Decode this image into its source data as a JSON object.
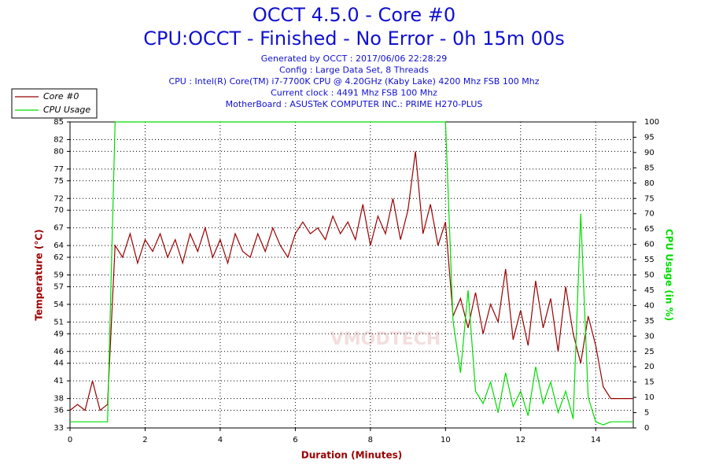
{
  "chart_data": {
    "type": "line",
    "title": "OCCT 4.5.0 - Core #0",
    "subtitle": "CPU:OCCT - Finished - No Error - 0h 15m 00s",
    "info": [
      "Generated by OCCT : 2017/06/06 22:28:29",
      "Config : Large Data Set, 8 Threads",
      "CPU : Intel(R) Core(TM) i7-7700K CPU @ 4.20GHz (Kaby Lake) 4200 Mhz FSB 100 Mhz",
      "Current clock : 4491 Mhz FSB 100 Mhz",
      "MotherBoard : ASUSTeK COMPUTER INC.: PRIME H270-PLUS"
    ],
    "watermark": "VMODTECH",
    "xlabel": "Duration (Minutes)",
    "ylabel": "Temperature (°C)",
    "y2label": "CPU Usage (in %)",
    "grid": true,
    "legend": "upper left",
    "xlim": [
      0,
      15
    ],
    "xticks": [
      0,
      2,
      4,
      6,
      8,
      10,
      12,
      14
    ],
    "ylim": [
      33,
      85
    ],
    "yticks": [
      33,
      36,
      38,
      41,
      44,
      46,
      49,
      51,
      54,
      57,
      59,
      62,
      64,
      67,
      70,
      72,
      75,
      77,
      80,
      82,
      85
    ],
    "y2lim": [
      0,
      100
    ],
    "y2ticks": [
      0,
      5,
      10,
      15,
      20,
      25,
      30,
      35,
      40,
      45,
      50,
      55,
      60,
      65,
      70,
      75,
      80,
      85,
      90,
      95,
      100
    ],
    "x": [
      0,
      0.2,
      0.4,
      0.6,
      0.8,
      1,
      1.2,
      1.4,
      1.6,
      1.8,
      2,
      2.2,
      2.4,
      2.6,
      2.8,
      3,
      3.2,
      3.4,
      3.6,
      3.8,
      4,
      4.2,
      4.4,
      4.6,
      4.8,
      5,
      5.2,
      5.4,
      5.6,
      5.8,
      6,
      6.2,
      6.4,
      6.6,
      6.8,
      7,
      7.2,
      7.4,
      7.6,
      7.8,
      8,
      8.2,
      8.4,
      8.6,
      8.8,
      9,
      9.2,
      9.4,
      9.6,
      9.8,
      10,
      10.2,
      10.4,
      10.6,
      10.8,
      11,
      11.2,
      11.4,
      11.6,
      11.8,
      12,
      12.2,
      12.4,
      12.6,
      12.8,
      13,
      13.2,
      13.4,
      13.6,
      13.8,
      14,
      14.2,
      14.4,
      14.6,
      14.8,
      15
    ],
    "series": [
      {
        "name": "Core #0",
        "color": "#990000",
        "values": [
          36,
          37,
          36,
          41,
          36,
          37,
          64,
          62,
          66,
          61,
          65,
          63,
          66,
          62,
          65,
          61,
          66,
          63,
          67,
          62,
          65,
          61,
          66,
          63,
          62,
          66,
          63,
          67,
          64,
          62,
          66,
          68,
          66,
          67,
          65,
          69,
          66,
          68,
          65,
          71,
          64,
          69,
          66,
          72,
          65,
          70,
          80,
          66,
          71,
          64,
          68,
          52,
          55,
          50,
          56,
          49,
          54,
          51,
          60,
          48,
          53,
          47,
          58,
          50,
          55,
          46,
          57,
          49,
          44,
          52,
          47,
          40,
          38,
          38,
          38,
          38
        ]
      },
      {
        "name": "CPU Usage",
        "color": "#00dd00",
        "axis": "y2",
        "values": [
          2,
          2,
          2,
          2,
          2,
          2,
          100,
          100,
          100,
          100,
          100,
          100,
          100,
          100,
          100,
          100,
          100,
          100,
          100,
          100,
          100,
          100,
          100,
          100,
          100,
          100,
          100,
          100,
          100,
          100,
          100,
          100,
          100,
          100,
          100,
          100,
          100,
          100,
          100,
          100,
          100,
          100,
          100,
          100,
          100,
          100,
          100,
          100,
          100,
          100,
          100,
          35,
          18,
          45,
          12,
          8,
          15,
          5,
          18,
          7,
          12,
          4,
          20,
          8,
          15,
          5,
          12,
          3,
          70,
          10,
          2,
          1,
          2,
          2,
          2,
          2
        ]
      }
    ]
  }
}
